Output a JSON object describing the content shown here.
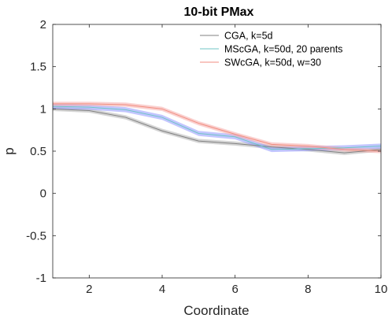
{
  "chart_data": {
    "type": "line",
    "title": "10-bit PMax",
    "xlabel": "Coordinate",
    "ylabel": "p",
    "xlim": [
      1,
      10
    ],
    "ylim": [
      -1,
      2
    ],
    "xticks": [
      2,
      4,
      6,
      8,
      10
    ],
    "yticks": [
      -1,
      -0.5,
      0,
      0.5,
      1,
      1.5,
      2
    ],
    "xtick_labels": [
      "2",
      "4",
      "6",
      "8",
      "10"
    ],
    "ytick_labels": [
      "-1",
      "-0.5",
      "0",
      "0.5",
      "1",
      "1.5",
      "2"
    ],
    "grid": false,
    "legend_position": "top-right",
    "x": [
      1,
      2,
      3,
      4,
      5,
      6,
      7,
      8,
      9,
      10
    ],
    "series": [
      {
        "name": "CGA, k=5d",
        "color": "#808080",
        "band_color": "#b3b3b3",
        "values": [
          1.0,
          0.98,
          0.9,
          0.74,
          0.62,
          0.59,
          0.55,
          0.52,
          0.48,
          0.52
        ],
        "band": 0.025
      },
      {
        "name": "MScGA, k=50d, 20 parents",
        "color": "#6fc5c5",
        "band_color": "#8f97ff",
        "values": [
          1.03,
          1.02,
          0.99,
          0.9,
          0.71,
          0.67,
          0.52,
          0.53,
          0.54,
          0.56
        ],
        "band": 0.03
      },
      {
        "name": "SWcGA, k=50d, w=30",
        "color": "#f08e80",
        "band_color": "#f6aaa8",
        "values": [
          1.06,
          1.06,
          1.05,
          1.0,
          0.83,
          0.7,
          0.58,
          0.56,
          0.52,
          0.5
        ],
        "band": 0.025
      }
    ]
  }
}
